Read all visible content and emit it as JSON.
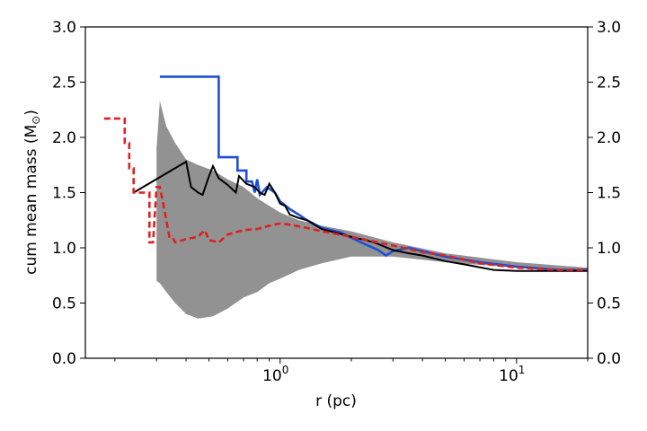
{
  "chart_data": {
    "type": "line",
    "title": "",
    "xlabel": "r (pc)",
    "ylabel": "cum mean mass (M",
    "ylabel_symbol": "⊙",
    "ylabel_close": ")",
    "x_scale": "log",
    "xlim": [
      0.15,
      20
    ],
    "ylim": [
      0,
      3
    ],
    "x_ticks": [
      {
        "value": 1,
        "base": "10",
        "exp": "0"
      },
      {
        "value": 10,
        "base": "10",
        "exp": "1"
      }
    ],
    "y_ticks": [
      {
        "value": 0.0,
        "label": "0.0"
      },
      {
        "value": 0.5,
        "label": "0.5"
      },
      {
        "value": 1.0,
        "label": "1.0"
      },
      {
        "value": 1.5,
        "label": "1.5"
      },
      {
        "value": 2.0,
        "label": "2.0"
      },
      {
        "value": 2.5,
        "label": "2.5"
      },
      {
        "value": 3.0,
        "label": "3.0"
      }
    ],
    "grid": false,
    "right_axis_labels": true,
    "band": {
      "color": "#7f7f7f",
      "x": [
        0.3,
        0.31,
        0.33,
        0.36,
        0.4,
        0.45,
        0.52,
        0.6,
        0.7,
        0.8,
        0.9,
        1.0,
        1.2,
        1.5,
        2.0,
        3.0,
        5.0,
        10.0,
        20.0
      ],
      "upper": [
        1.9,
        2.33,
        2.1,
        1.95,
        1.8,
        1.75,
        1.7,
        1.62,
        1.55,
        1.45,
        1.38,
        1.32,
        1.25,
        1.2,
        1.15,
        1.05,
        0.95,
        0.87,
        0.82
      ],
      "lower": [
        0.7,
        0.68,
        0.6,
        0.5,
        0.4,
        0.36,
        0.38,
        0.45,
        0.55,
        0.6,
        0.68,
        0.72,
        0.8,
        0.86,
        0.92,
        0.92,
        0.87,
        0.82,
        0.79
      ]
    },
    "series": [
      {
        "color": "#1f4fd6",
        "dash": "solid",
        "points": [
          [
            0.31,
            2.55
          ],
          [
            0.55,
            2.55
          ],
          [
            0.55,
            1.82
          ],
          [
            0.66,
            1.82
          ],
          [
            0.66,
            1.7
          ],
          [
            0.72,
            1.7
          ],
          [
            0.72,
            1.6
          ],
          [
            0.76,
            1.6
          ],
          [
            0.78,
            1.5
          ],
          [
            0.8,
            1.62
          ],
          [
            0.82,
            1.48
          ],
          [
            0.88,
            1.55
          ],
          [
            0.95,
            1.5
          ],
          [
            1.0,
            1.42
          ],
          [
            1.1,
            1.35
          ],
          [
            1.2,
            1.3
          ],
          [
            1.3,
            1.25
          ],
          [
            1.5,
            1.18
          ],
          [
            1.8,
            1.14
          ],
          [
            2.2,
            1.05
          ],
          [
            2.6,
            0.98
          ],
          [
            2.8,
            0.93
          ],
          [
            3.0,
            0.97
          ],
          [
            3.5,
            1.0
          ],
          [
            4.0,
            0.97
          ],
          [
            5.0,
            0.92
          ],
          [
            7.0,
            0.87
          ],
          [
            10.0,
            0.83
          ],
          [
            15.0,
            0.8
          ],
          [
            20.0,
            0.8
          ]
        ]
      },
      {
        "color": "#000000",
        "dash": "solid",
        "points": [
          [
            0.24,
            1.5
          ],
          [
            0.4,
            1.78
          ],
          [
            0.42,
            1.55
          ],
          [
            0.45,
            1.5
          ],
          [
            0.47,
            1.48
          ],
          [
            0.5,
            1.65
          ],
          [
            0.52,
            1.74
          ],
          [
            0.55,
            1.63
          ],
          [
            0.6,
            1.57
          ],
          [
            0.65,
            1.5
          ],
          [
            0.67,
            1.65
          ],
          [
            0.72,
            1.58
          ],
          [
            0.78,
            1.55
          ],
          [
            0.82,
            1.5
          ],
          [
            0.86,
            1.48
          ],
          [
            0.9,
            1.58
          ],
          [
            0.95,
            1.5
          ],
          [
            1.0,
            1.4
          ],
          [
            1.05,
            1.38
          ],
          [
            1.1,
            1.3
          ],
          [
            1.2,
            1.27
          ],
          [
            1.3,
            1.25
          ],
          [
            1.5,
            1.17
          ],
          [
            1.7,
            1.14
          ],
          [
            2.0,
            1.1
          ],
          [
            2.5,
            1.05
          ],
          [
            3.0,
            0.98
          ],
          [
            3.5,
            0.95
          ],
          [
            4.0,
            0.93
          ],
          [
            5.0,
            0.88
          ],
          [
            6.0,
            0.85
          ],
          [
            8.0,
            0.8
          ],
          [
            10.0,
            0.79
          ],
          [
            15.0,
            0.79
          ],
          [
            20.0,
            0.79
          ]
        ]
      },
      {
        "color": "#e02020",
        "dash": "dashed",
        "points": [
          [
            0.18,
            2.17
          ],
          [
            0.22,
            2.17
          ],
          [
            0.22,
            1.95
          ],
          [
            0.23,
            1.95
          ],
          [
            0.23,
            1.72
          ],
          [
            0.24,
            1.72
          ],
          [
            0.24,
            1.5
          ],
          [
            0.28,
            1.5
          ],
          [
            0.28,
            1.05
          ],
          [
            0.29,
            1.05
          ],
          [
            0.3,
            1.55
          ],
          [
            0.31,
            1.55
          ],
          [
            0.32,
            1.4
          ],
          [
            0.33,
            1.25
          ],
          [
            0.34,
            1.1
          ],
          [
            0.35,
            1.1
          ],
          [
            0.36,
            1.05
          ],
          [
            0.4,
            1.08
          ],
          [
            0.45,
            1.1
          ],
          [
            0.48,
            1.16
          ],
          [
            0.5,
            1.07
          ],
          [
            0.55,
            1.05
          ],
          [
            0.6,
            1.12
          ],
          [
            0.7,
            1.16
          ],
          [
            0.8,
            1.17
          ],
          [
            0.9,
            1.2
          ],
          [
            1.0,
            1.22
          ],
          [
            1.1,
            1.21
          ],
          [
            1.3,
            1.18
          ],
          [
            1.5,
            1.15
          ],
          [
            2.0,
            1.1
          ],
          [
            3.0,
            1.02
          ],
          [
            4.0,
            0.96
          ],
          [
            5.0,
            0.93
          ],
          [
            7.0,
            0.86
          ],
          [
            10.0,
            0.82
          ],
          [
            15.0,
            0.8
          ],
          [
            20.0,
            0.8
          ]
        ]
      }
    ]
  }
}
